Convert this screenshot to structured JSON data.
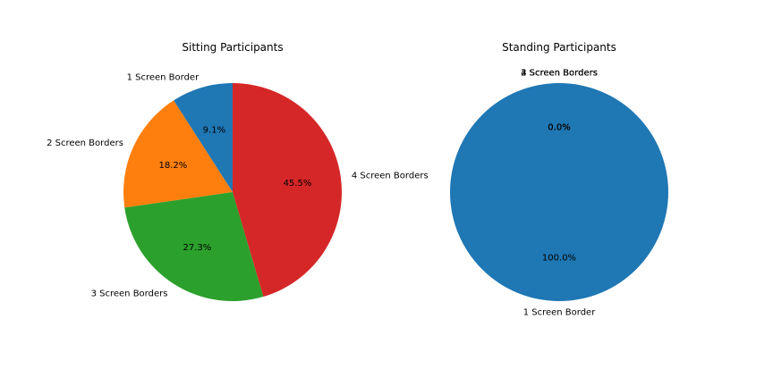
{
  "chart_data": [
    {
      "type": "pie",
      "title": "Sitting Participants",
      "categories": [
        "1 Screen Border",
        "2 Screen Borders",
        "3 Screen Borders",
        "4 Screen Borders"
      ],
      "values": [
        9.1,
        18.2,
        27.3,
        45.5
      ],
      "percent_labels": [
        "9.1%",
        "18.2%",
        "27.3%",
        "45.5%"
      ],
      "colors": [
        "#1f77b4",
        "#ff7f0e",
        "#2ca02c",
        "#d62728"
      ],
      "start_angle_deg": 90,
      "direction": "counterclockwise"
    },
    {
      "type": "pie",
      "title": "Standing Participants",
      "categories": [
        "1 Screen Border",
        "2 Screen Borders",
        "3 Screen Borders",
        "4 Screen Borders"
      ],
      "values": [
        100.0,
        0.0,
        0.0,
        0.0
      ],
      "percent_labels": [
        "100.0%",
        "0.0%",
        "0.0%",
        "0.0%"
      ],
      "colors": [
        "#1f77b4",
        "#ff7f0e",
        "#2ca02c",
        "#d62728"
      ],
      "start_angle_deg": 90,
      "direction": "counterclockwise"
    }
  ]
}
